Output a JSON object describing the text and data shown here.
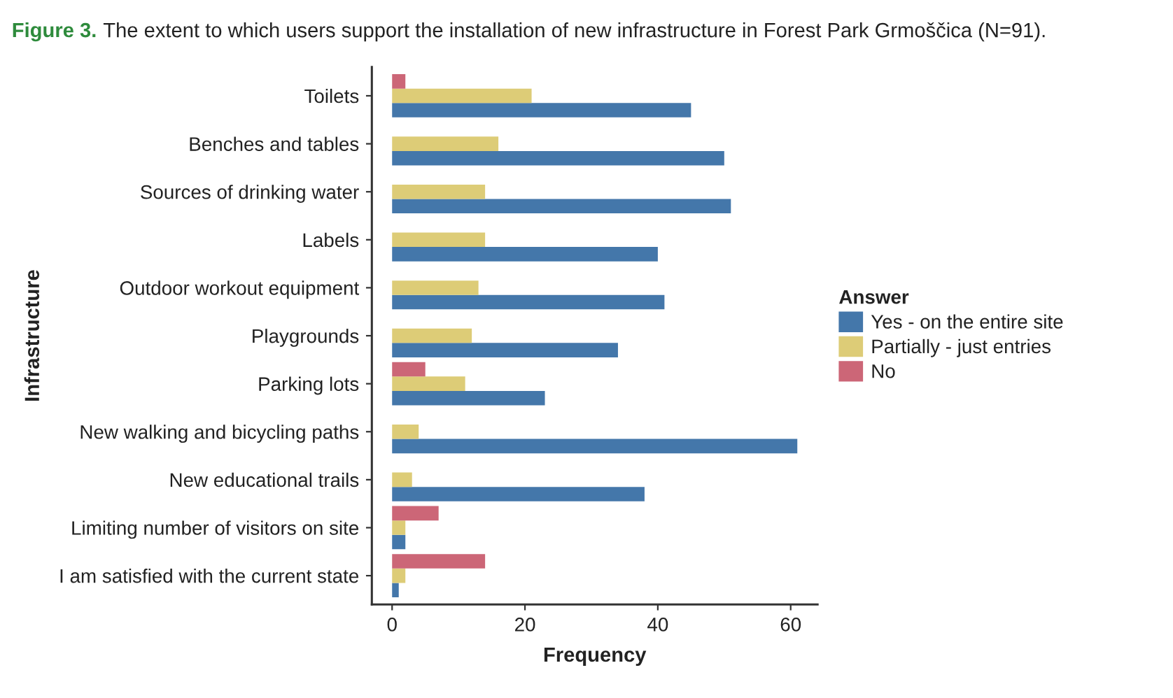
{
  "chart_data": {
    "type": "bar",
    "orientation": "horizontal",
    "title": "The extent to which users support the installation of new infrastructure in Forest Park Grmoščica (N=91).",
    "annotations": [
      "Figure 3."
    ],
    "xlabel": "Frequency",
    "ylabel": "Infrastructure",
    "legend_title": "Answer",
    "legend": "right",
    "grid": false,
    "categories": [
      "Toilets",
      "Benches and tables",
      "Sources of drinking water",
      "Labels",
      "Outdoor workout equipment",
      "Playgrounds",
      "Parking lots",
      "New walking and bicycling paths",
      "New educational trails",
      "Limiting number of visitors on site",
      "I am satisfied with the current state"
    ],
    "series": [
      {
        "name": "Yes - on the entire site",
        "color": "#4477aa",
        "values": [
          45,
          50,
          51,
          40,
          41,
          34,
          23,
          61,
          38,
          2,
          1
        ]
      },
      {
        "name": "Partially - just entries",
        "color": "#ddcc77",
        "values": [
          21,
          16,
          14,
          14,
          13,
          12,
          11,
          4,
          3,
          2,
          2
        ]
      },
      {
        "name": "No",
        "color": "#cc6677",
        "values": [
          2,
          null,
          null,
          null,
          null,
          null,
          5,
          null,
          null,
          7,
          14
        ]
      }
    ],
    "xlim": [
      -3.05,
      64.05
    ],
    "xticks": [
      0,
      20,
      40,
      60
    ]
  }
}
